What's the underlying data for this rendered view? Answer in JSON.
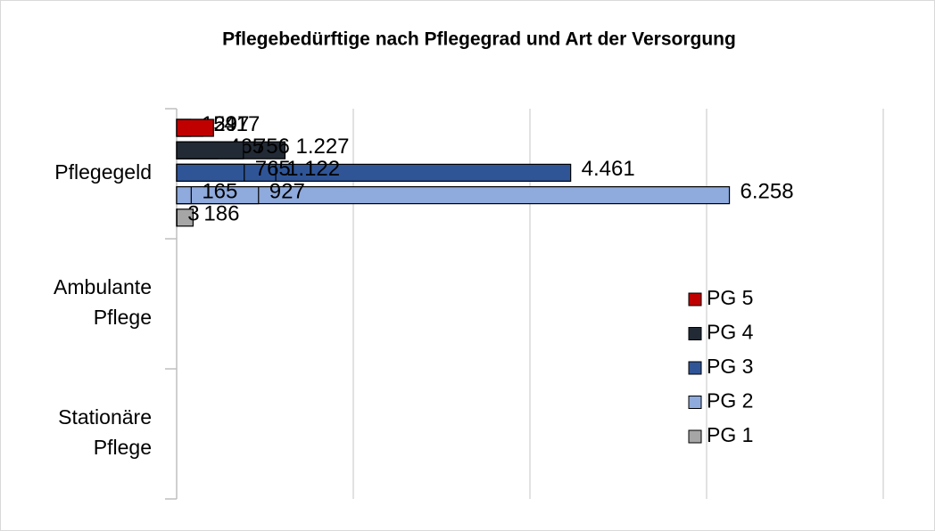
{
  "chart_data": {
    "type": "bar",
    "orientation": "horizontal",
    "title": "Pflegebedürftige nach Pflegegrad und Art der Versorgung",
    "categories": [
      "Pflegegeld",
      "Ambulante Pflege",
      "Stationäre Pflege"
    ],
    "series": [
      {
        "name": "PG 5",
        "color": "#c00000",
        "values": [
          297,
          159,
          417
        ]
      },
      {
        "name": "PG 4",
        "color": "#222a35",
        "values": [
          1227,
          465,
          756
        ],
        "value_labels": [
          "1.227",
          "465",
          "756"
        ]
      },
      {
        "name": "PG 3",
        "color": "#2f5597",
        "values": [
          4461,
          1122,
          765
        ],
        "value_labels": [
          "4.461",
          "1.122",
          "765"
        ]
      },
      {
        "name": "PG 2",
        "color": "#8faadc",
        "values": [
          6258,
          927,
          165
        ],
        "value_labels": [
          "6.258",
          "927",
          "165"
        ]
      },
      {
        "name": "PG 1",
        "color": "#a6a6a6",
        "values": [
          null,
          186,
          3
        ]
      }
    ],
    "xlim": [
      0,
      8000
    ],
    "xticks": [
      0,
      2000,
      4000,
      6000,
      8000
    ],
    "grid": true,
    "legend": "right"
  }
}
